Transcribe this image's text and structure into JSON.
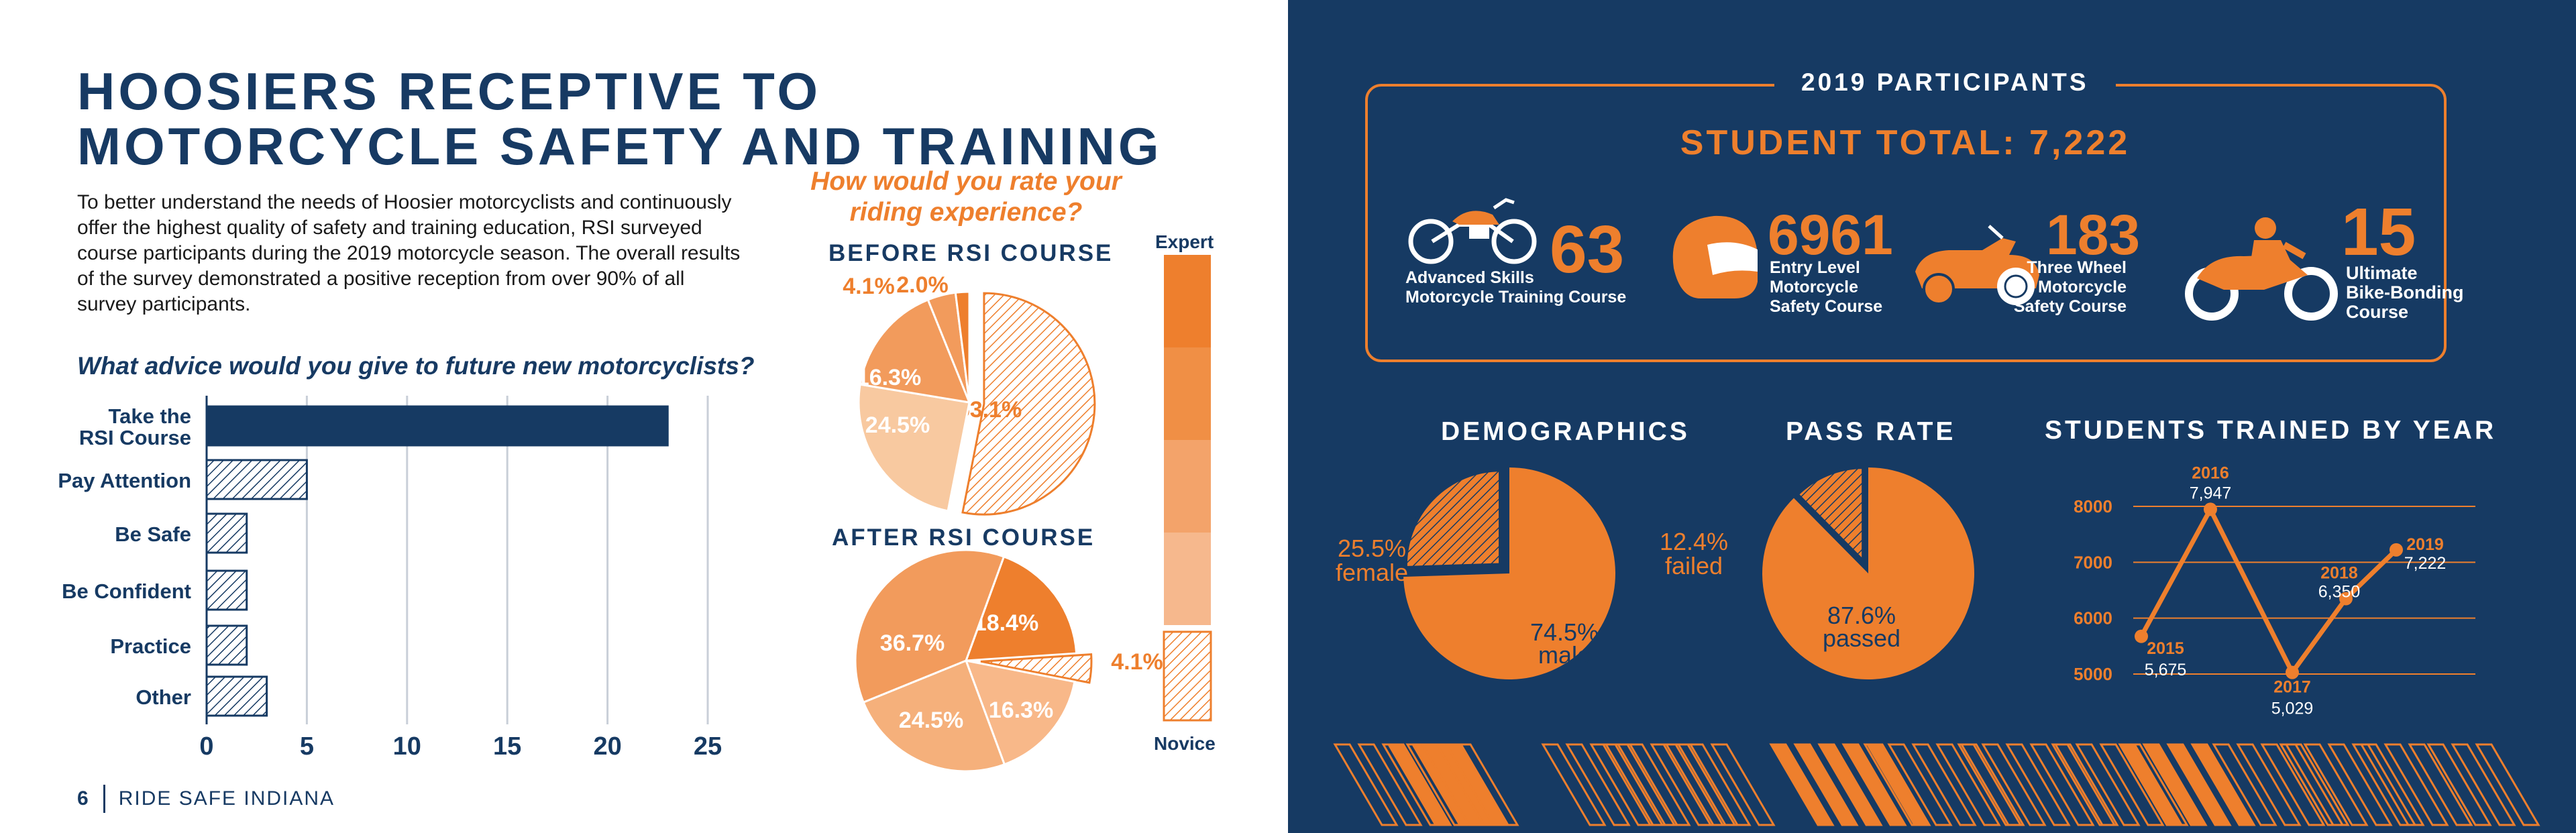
{
  "page": {
    "title": "HOOSIERS RECEPTIVE TO MOTORCYCLE SAFETY AND TRAINING",
    "intro": "To better understand the needs of Hoosier motorcyclists and continuously offer the highest quality of safety and training education, RSI surveyed course participants during the 2019 motorcycle season. The overall results of the survey demonstrated a positive reception from over 90% of all survey participants.",
    "footer_page": "6",
    "footer_text": "RIDE SAFE INDIANA"
  },
  "colors": {
    "navy": "#163a63",
    "orange": "#ee7f2d",
    "orange_mid": "#f29b5c",
    "orange_light": "#f5b584",
    "orange_pale": "#f8c9a0"
  },
  "chart_data": [
    {
      "type": "bar",
      "orientation": "horizontal",
      "title": "What advice would you give to future new motorcyclists?",
      "categories": [
        "Take the RSI Course",
        "Pay Attention",
        "Be Safe",
        "Be Confident",
        "Practice",
        "Other"
      ],
      "category_lines": [
        [
          "Take the",
          "RSI Course"
        ],
        [
          "Pay Attention"
        ],
        [
          "Be Safe"
        ],
        [
          "Be Confident"
        ],
        [
          "Practice"
        ],
        [
          "Other"
        ]
      ],
      "values": [
        23,
        5,
        2,
        2,
        2,
        3
      ],
      "xlim": [
        0,
        25
      ],
      "xticks": [
        "0",
        "5",
        "10",
        "15",
        "20",
        "25"
      ],
      "grid": true
    },
    {
      "type": "pie",
      "title": "How would you rate your riding experience?",
      "subtitle": "BEFORE RSI COURSE",
      "slices": [
        {
          "label": "53.1%",
          "value": 53.1,
          "color": "#ee7f2d",
          "hatched": true,
          "exploded": true
        },
        {
          "label": "24.5%",
          "value": 24.5,
          "color": "#f8c9a0"
        },
        {
          "label": "16.3%",
          "value": 16.3,
          "color": "#f29b5c"
        },
        {
          "label": "4.1%",
          "value": 4.1,
          "color": "#f29b5c"
        },
        {
          "label": "2.0%",
          "value": 2.0,
          "color": "#ee7f2d"
        }
      ]
    },
    {
      "type": "pie",
      "subtitle": "AFTER RSI COURSE",
      "slices": [
        {
          "label": "18.4%",
          "value": 18.4,
          "color": "#ee7f2d"
        },
        {
          "label": "4.1%",
          "value": 4.1,
          "color": "#ee7f2d",
          "hatched": true,
          "exploded": true
        },
        {
          "label": "16.3%",
          "value": 16.3,
          "color": "#f8b889"
        },
        {
          "label": "24.5%",
          "value": 24.5,
          "color": "#f5b07b"
        },
        {
          "label": "36.7%",
          "value": 36.7,
          "color": "#f29b5c"
        }
      ]
    },
    {
      "type": "pie",
      "title": "DEMOGRAPHICS",
      "slices": [
        {
          "label": "female",
          "percent_label": "25.5%",
          "value": 25.5,
          "hatched": true
        },
        {
          "label": "male",
          "percent_label": "74.5%",
          "value": 74.5
        }
      ]
    },
    {
      "type": "pie",
      "title": "PASS RATE",
      "slices": [
        {
          "label": "failed",
          "percent_label": "12.4%",
          "value": 12.4,
          "hatched": true
        },
        {
          "label": "passed",
          "percent_label": "87.6%",
          "value": 87.6
        }
      ]
    },
    {
      "type": "line",
      "title": "STUDENTS TRAINED BY YEAR",
      "x": [
        "2015",
        "2016",
        "2017",
        "2018",
        "2019"
      ],
      "values": [
        5675,
        7947,
        5029,
        6350,
        7222
      ],
      "value_labels": [
        "5,675",
        "7,947",
        "5,029",
        "6,350",
        "7,222"
      ],
      "ylim": [
        5000,
        8000
      ],
      "yticks": [
        "5000",
        "6000",
        "7000",
        "8000"
      ],
      "grid": true
    }
  ],
  "scale": {
    "top": "Expert",
    "bottom": "Novice",
    "colors": [
      "#ee7f2d",
      "#f08f45",
      "#f3a36a",
      "#f6b88d"
    ]
  },
  "participants": {
    "heading": "2019 PARTICIPANTS",
    "total": "STUDENT TOTAL: 7,222",
    "items": [
      {
        "number": "63",
        "label_lines": [
          "Advanced Skills",
          "Motorcycle Training Course"
        ],
        "icon": "cruiser-motorcycle-icon"
      },
      {
        "number": "6961",
        "label_lines": [
          "Entry Level",
          "Motorcycle",
          "Safety Course"
        ],
        "icon": "helmet-icon"
      },
      {
        "number": "183",
        "label_lines": [
          "Three Wheel",
          "Motorcycle",
          "Safety Course"
        ],
        "icon": "trike-icon"
      },
      {
        "number": "15",
        "label_lines": [
          "Ultimate",
          "Bike-Bonding",
          "Course"
        ],
        "icon": "rider-motorcycle-icon"
      }
    ]
  }
}
